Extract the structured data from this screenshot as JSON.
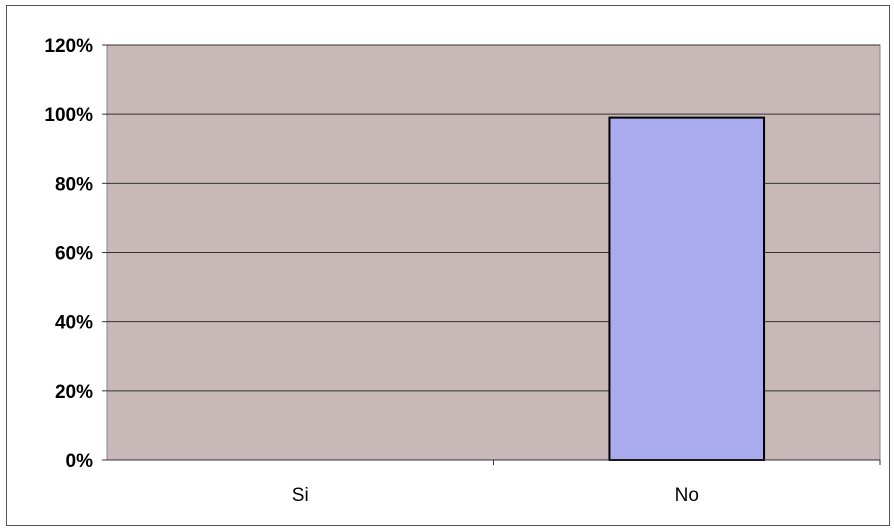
{
  "chart_data": {
    "type": "bar",
    "categories": [
      "Si",
      "No"
    ],
    "values": [
      0,
      99
    ],
    "ylim": [
      0,
      120
    ],
    "ytick_values": [
      0,
      20,
      40,
      60,
      80,
      100,
      120
    ],
    "ytick_labels": [
      "0%",
      "20%",
      "40%",
      "60%",
      "80%",
      "100%",
      "120%"
    ],
    "grid": true,
    "legend": "none",
    "title": "",
    "xlabel": "",
    "ylabel": "",
    "colors": {
      "plot_background": "#c9b8b8",
      "bar_fill": "#aaaaee",
      "bar_stroke": "#000000",
      "gridline": "#333333"
    }
  }
}
